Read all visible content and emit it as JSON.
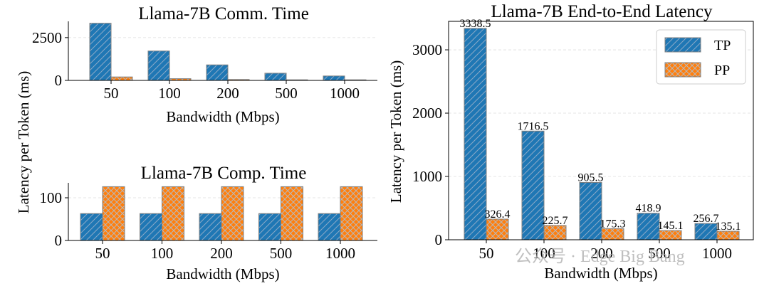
{
  "watermark": {
    "text": "公众号 · Edge Big Bang"
  },
  "chart_data": [
    {
      "type": "bar",
      "title": "Llama-7B Comm. Time",
      "xlabel": "Bandwidth (Mbps)",
      "ylabel": "",
      "categories": [
        "50",
        "100",
        "200",
        "500",
        "1000"
      ],
      "series": [
        {
          "name": "TP",
          "values": [
            3338.5,
            1716.5,
            905.5,
            418.9,
            256.7
          ]
        },
        {
          "name": "PP",
          "values": [
            201,
            100,
            50,
            20,
            9
          ]
        }
      ],
      "ylim": [
        0,
        3450
      ],
      "yticks": [
        0,
        2500
      ],
      "ytick_labels": [
        "0",
        "2500"
      ],
      "grid": true
    },
    {
      "type": "bar",
      "title": "Llama-7B Comp. Time",
      "xlabel": "Bandwidth (Mbps)",
      "ylabel": "",
      "categories": [
        "50",
        "100",
        "200",
        "500",
        "1000"
      ],
      "series": [
        {
          "name": "TP",
          "values": [
            63,
            63,
            63,
            63,
            63
          ]
        },
        {
          "name": "PP",
          "values": [
            126,
            126,
            126,
            126,
            126
          ]
        }
      ],
      "ylim": [
        0,
        135
      ],
      "yticks": [
        0,
        100
      ],
      "ytick_labels": [
        "0",
        "100"
      ],
      "grid": true
    },
    {
      "type": "bar",
      "title": "Llama-7B End-to-End Latency",
      "xlabel": "Bandwidth (Mbps)",
      "ylabel": "",
      "categories": [
        "50",
        "100",
        "200",
        "500",
        "1000"
      ],
      "series": [
        {
          "name": "TP",
          "values": [
            3338.5,
            1716.5,
            905.5,
            418.9,
            256.7
          ],
          "labels": [
            "3338.5",
            "1716.5",
            "905.5",
            "418.9",
            "256.7"
          ]
        },
        {
          "name": "PP",
          "values": [
            326.4,
            225.7,
            175.3,
            145.1,
            135.1
          ],
          "labels": [
            "326.4",
            "225.7",
            "175.3",
            "145.1",
            "135.1"
          ]
        }
      ],
      "ylim": [
        0,
        3450
      ],
      "yticks": [
        0,
        1000,
        2000,
        3000
      ],
      "ytick_labels": [
        "0",
        "1000",
        "2000",
        "3000"
      ],
      "legend": {
        "position": "top-right",
        "entries": [
          "TP",
          "PP"
        ]
      },
      "grid": true
    }
  ],
  "shared_ylabel": "Latency per Token (ms)",
  "colors": {
    "tp": "#1f77b4",
    "pp": "#ff7f0e",
    "edge": "#808080"
  }
}
